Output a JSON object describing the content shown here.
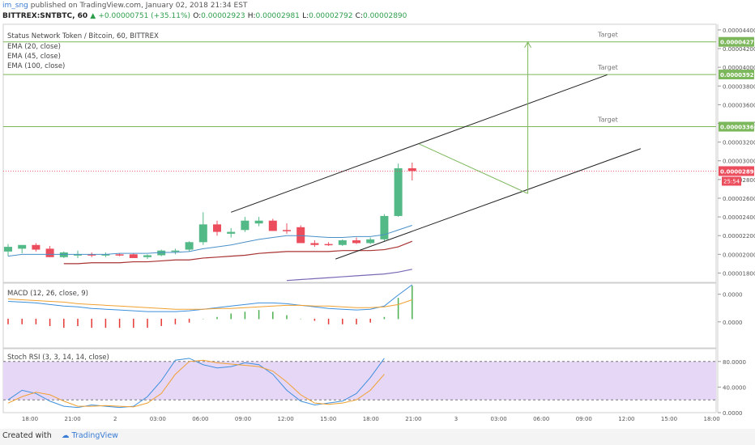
{
  "header": {
    "user": "im_sng",
    "published": " published on TradingView.com, January 02, 2018 21:34 EST",
    "symbol": "BITTREX:SNTBTC, 60",
    "change": "+0.00000751 (+35.11%)",
    "o_label": "O:",
    "o": "0.00002923",
    "h_label": "H:",
    "h": "0.00002981",
    "l_label": "L:",
    "l": "0.00002792",
    "c_label": "C:",
    "c": "0.00002890"
  },
  "legend": {
    "title": "Status Network Token / Bitcoin, 60, BITTREX",
    "ema20": "EMA (20, close)",
    "ema45": "EMA (45, close)",
    "ema100": "EMA (100, close)"
  },
  "macd_label": "MACD (12, 26, close, 9)",
  "stoch_label": "Stoch RSI (3, 3, 14, 14, close)",
  "footer": {
    "created": "Created with",
    "brand": "TradingView"
  },
  "colors": {
    "up": "#53b987",
    "down": "#eb4d5c",
    "ema20": "#4a90c8",
    "ema45": "#a83232",
    "ema100": "#7b68b5",
    "target": "#7cb85b",
    "channel": "#222222",
    "macd": "#3c8fdc",
    "signal": "#f0a030",
    "stoch_fill": "#e7d7f7"
  },
  "chart_data": [
    {
      "type": "candlestick",
      "title": "Status Network Token / Bitcoin, 60, BITTREX",
      "ylim": [
        1.7e-05,
        4.46e-05
      ],
      "y_ticks": [
        "0.00004400",
        "0.00004200",
        "0.00004000",
        "0.00003800",
        "0.00003600",
        "0.00003400",
        "0.00003200",
        "0.00003000",
        "0.00002800",
        "0.00002600",
        "0.00002400",
        "0.00002200",
        "0.00002000",
        "0.00001800"
      ],
      "x_ticks": [
        "18:00",
        "21:00",
        "2",
        "03:00",
        "06:00",
        "09:00",
        "12:00",
        "15:00",
        "18:00",
        "21:00",
        "3",
        "03:00",
        "06:00",
        "09:00",
        "12:00",
        "15:00",
        "18:00"
      ],
      "candles": [
        {
          "o": 2.03e-05,
          "h": 2.11e-05,
          "l": 1.98e-05,
          "c": 2.08e-05
        },
        {
          "o": 2.06e-05,
          "h": 2.09e-05,
          "l": 2.01e-05,
          "c": 2.1e-05
        },
        {
          "o": 2.1e-05,
          "h": 2.12e-05,
          "l": 2.03e-05,
          "c": 2.05e-05
        },
        {
          "o": 2.06e-05,
          "h": 2.09e-05,
          "l": 1.97e-05,
          "c": 1.97e-05
        },
        {
          "o": 1.97e-05,
          "h": 2.03e-05,
          "l": 1.96e-05,
          "c": 2.02e-05
        },
        {
          "o": 2e-05,
          "h": 2.04e-05,
          "l": 1.96e-05,
          "c": 2e-05
        },
        {
          "o": 2e-05,
          "h": 2.02e-05,
          "l": 1.97e-05,
          "c": 1.99e-05
        },
        {
          "o": 1.99e-05,
          "h": 2.02e-05,
          "l": 1.97e-05,
          "c": 2e-05
        },
        {
          "o": 2e-05,
          "h": 2.01e-05,
          "l": 1.98e-05,
          "c": 1.99e-05
        },
        {
          "o": 2e-05,
          "h": 2.01e-05,
          "l": 1.97e-05,
          "c": 1.96e-05
        },
        {
          "o": 1.97e-05,
          "h": 2e-05,
          "l": 1.95e-05,
          "c": 1.99e-05
        },
        {
          "o": 1.99e-05,
          "h": 2.05e-05,
          "l": 1.98e-05,
          "c": 2.04e-05
        },
        {
          "o": 2.04e-05,
          "h": 2.06e-05,
          "l": 2e-05,
          "c": 2.04e-05
        },
        {
          "o": 2.05e-05,
          "h": 2.14e-05,
          "l": 2.03e-05,
          "c": 2.13e-05
        },
        {
          "o": 2.13e-05,
          "h": 2.45e-05,
          "l": 2.1e-05,
          "c": 2.32e-05
        },
        {
          "o": 2.32e-05,
          "h": 2.36e-05,
          "l": 2.2e-05,
          "c": 2.24e-05
        },
        {
          "o": 2.22e-05,
          "h": 2.28e-05,
          "l": 2.18e-05,
          "c": 2.24e-05
        },
        {
          "o": 2.26e-05,
          "h": 2.4e-05,
          "l": 2.24e-05,
          "c": 2.36e-05
        },
        {
          "o": 2.33e-05,
          "h": 2.4e-05,
          "l": 2.3e-05,
          "c": 2.36e-05
        },
        {
          "o": 2.36e-05,
          "h": 2.38e-05,
          "l": 2.25e-05,
          "c": 2.25e-05
        },
        {
          "o": 2.26e-05,
          "h": 2.33e-05,
          "l": 2.22e-05,
          "c": 2.25e-05
        },
        {
          "o": 2.29e-05,
          "h": 2.31e-05,
          "l": 2.12e-05,
          "c": 2.12e-05
        },
        {
          "o": 2.12e-05,
          "h": 2.15e-05,
          "l": 2.08e-05,
          "c": 2.1e-05
        },
        {
          "o": 2.11e-05,
          "h": 2.13e-05,
          "l": 2.09e-05,
          "c": 2.1e-05
        },
        {
          "o": 2.1e-05,
          "h": 2.16e-05,
          "l": 2.09e-05,
          "c": 2.15e-05
        },
        {
          "o": 2.15e-05,
          "h": 2.18e-05,
          "l": 2.11e-05,
          "c": 2.12e-05
        },
        {
          "o": 2.12e-05,
          "h": 2.18e-05,
          "l": 2.11e-05,
          "c": 2.16e-05
        },
        {
          "o": 2.16e-05,
          "h": 2.43e-05,
          "l": 2.14e-05,
          "c": 2.41e-05
        },
        {
          "o": 2.41e-05,
          "h": 2.97e-05,
          "l": 2.4e-05,
          "c": 2.92e-05
        },
        {
          "o": 2.92e-05,
          "h": 2.98e-05,
          "l": 2.79e-05,
          "c": 2.89e-05
        }
      ],
      "ema20": [
        1.98e-05,
        2e-05,
        2e-05,
        2e-05,
        2e-05,
        2e-05,
        2e-05,
        2e-05,
        2.01e-05,
        2.01e-05,
        2.01e-05,
        2.02e-05,
        2.02e-05,
        2.03e-05,
        2.06e-05,
        2.08e-05,
        2.1e-05,
        2.13e-05,
        2.16e-05,
        2.18e-05,
        2.2e-05,
        2.2e-05,
        2.19e-05,
        2.18e-05,
        2.18e-05,
        2.19e-05,
        2.19e-05,
        2.21e-05,
        2.26e-05,
        2.31e-05
      ],
      "ema45": [
        null,
        null,
        null,
        null,
        1.9e-05,
        1.9e-05,
        1.91e-05,
        1.91e-05,
        1.91e-05,
        1.92e-05,
        1.92e-05,
        1.93e-05,
        1.94e-05,
        1.94e-05,
        1.96e-05,
        1.97e-05,
        1.98e-05,
        1.99e-05,
        2.01e-05,
        2.02e-05,
        2.03e-05,
        2.03e-05,
        2.03e-05,
        2.03e-05,
        2.04e-05,
        2.04e-05,
        2.04e-05,
        2.05e-05,
        2.08e-05,
        2.14e-05
      ],
      "ema100": [
        null,
        null,
        null,
        null,
        null,
        null,
        null,
        null,
        null,
        null,
        null,
        null,
        null,
        null,
        null,
        null,
        null,
        null,
        null,
        null,
        1.72e-05,
        1.73e-05,
        1.74e-05,
        1.75e-05,
        1.76e-05,
        1.77e-05,
        1.78e-05,
        1.79e-05,
        1.81e-05,
        1.84e-05
      ],
      "levels": [
        {
          "value": "0.00004272",
          "label": "Target",
          "price": 4.272e-05
        },
        {
          "value": "0.00003923",
          "label": "Target",
          "price": 3.923e-05
        },
        {
          "value": "0.00003365",
          "label": "Target",
          "price": 3.365e-05
        }
      ],
      "last_price": {
        "value": "0.00002890",
        "price": 2.89e-05
      },
      "countdown": "25:54"
    },
    {
      "type": "line",
      "title": "MACD (12, 26, close, 9)",
      "ylim": [
        -3.7e-06,
        4.5e-06
      ],
      "y_ticks": [
        {
          "label": "0.0000",
          "value": 3.1e-06
        },
        {
          "label": "0.0000",
          "value": -4e-07
        }
      ],
      "macd": [
        2.2e-06,
        2.1e-06,
        2e-06,
        1.8e-06,
        1.6e-06,
        1.5e-06,
        1.3e-06,
        1.2e-06,
        1.1e-06,
        1e-06,
        9e-07,
        9e-07,
        9e-07,
        1e-06,
        1.2e-06,
        1.4e-06,
        1.6e-06,
        1.8e-06,
        2e-06,
        2e-06,
        1.9e-06,
        1.7e-06,
        1.5e-06,
        1.3e-06,
        1.2e-06,
        1.1e-06,
        1.2e-06,
        1.6e-06,
        3e-06,
        4.3e-06
      ],
      "signal": [
        2.5e-06,
        2.4e-06,
        2.3e-06,
        2.2e-06,
        2.1e-06,
        1.9e-06,
        1.8e-06,
        1.7e-06,
        1.6e-06,
        1.5e-06,
        1.4e-06,
        1.3e-06,
        1.2e-06,
        1.2e-06,
        1.2e-06,
        1.3e-06,
        1.3e-06,
        1.4e-06,
        1.5e-06,
        1.6e-06,
        1.7e-06,
        1.7e-06,
        1.6e-06,
        1.6e-06,
        1.5e-06,
        1.4e-06,
        1.4e-06,
        1.5e-06,
        1.8e-06,
        2.4e-06
      ]
    },
    {
      "type": "line",
      "title": "Stoch RSI (3, 3, 14, 14, close)",
      "ylim": [
        0,
        100
      ],
      "bands": [
        20,
        80
      ],
      "y_ticks": [
        {
          "label": "80.0000",
          "value": 80
        },
        {
          "label": "40.0000",
          "value": 40
        },
        {
          "label": "0.0000",
          "value": 0
        }
      ],
      "k": [
        20,
        35,
        30,
        18,
        10,
        8,
        12,
        10,
        8,
        10,
        25,
        50,
        82,
        85,
        75,
        70,
        72,
        78,
        75,
        60,
        35,
        18,
        12,
        15,
        18,
        30,
        55,
        85
      ],
      "d": [
        15,
        25,
        32,
        28,
        18,
        10,
        10,
        11,
        10,
        9,
        15,
        30,
        60,
        80,
        82,
        78,
        76,
        74,
        72,
        65,
        48,
        28,
        15,
        13,
        15,
        20,
        35,
        60
      ]
    }
  ]
}
